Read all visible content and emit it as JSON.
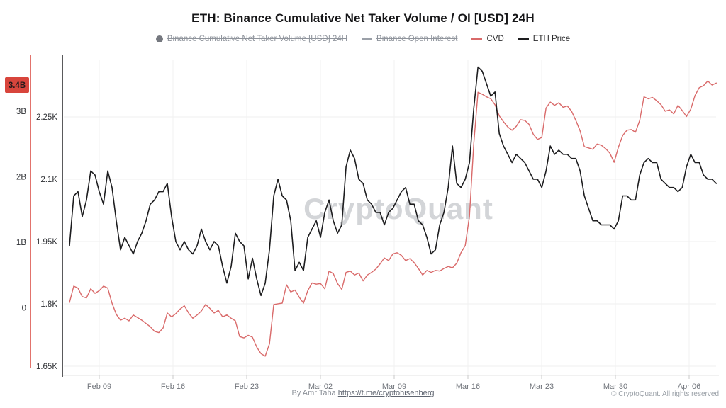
{
  "title": "ETH: Binance Cumulative Net Taker Volume / OI [USD] 24H",
  "watermark": "CryptoQuant",
  "legend": {
    "items": [
      {
        "label": "Binance Cumulative Net Taker Volume [USD] 24H",
        "marker": "dot",
        "color": "#75787f",
        "disabled": true
      },
      {
        "label": "Binance Open Interest",
        "marker": "dash",
        "color": "#9ba0a8",
        "disabled": true
      },
      {
        "label": "CVD",
        "marker": "dash",
        "color": "#d96a6a",
        "disabled": false
      },
      {
        "label": "ETH Price",
        "marker": "dash",
        "color": "#1d1d1f",
        "disabled": false
      }
    ]
  },
  "footer": {
    "attribution_prefix": "By Amr Taha",
    "attribution_link": "https://t.me/cryptohisenberg",
    "copyright": "© CryptoQuant. All rights reserved"
  },
  "chart_data": {
    "type": "line",
    "title": "ETH: Binance Cumulative Net Taker Volume / OI [USD] 24H",
    "grid": "horizontal-and-faint-vertical",
    "legend_position": "top",
    "x_axis": {
      "tick_labels": [
        "Feb 09",
        "Feb 16",
        "Feb 23",
        "Mar 02",
        "Mar 09",
        "Mar 16",
        "Mar 23",
        "Mar 30",
        "Apr 06"
      ],
      "tick_days": [
        0,
        7,
        14,
        21,
        28,
        35,
        42,
        49,
        56
      ]
    },
    "volume_axis": {
      "unit": "B",
      "axis_color": "#d8453c",
      "ticks": [
        {
          "label": "3B",
          "value": 3
        },
        {
          "label": "2B",
          "value": 2
        },
        {
          "label": "1B",
          "value": 1
        },
        {
          "label": "0",
          "value": 0
        }
      ],
      "badge": {
        "label": "3.4B",
        "value": 3.4,
        "bg_color": "#d8453c",
        "text_color": "#26191a"
      }
    },
    "price_axis": {
      "unit": "K",
      "axis_color": "#5a5a5c",
      "ticks": [
        {
          "label": "2.25K",
          "value": 2.25
        },
        {
          "label": "2.1K",
          "value": 2.1
        },
        {
          "label": "1.95K",
          "value": 1.95
        },
        {
          "label": "1.8K",
          "value": 1.8
        },
        {
          "label": "1.65K",
          "value": 1.65
        }
      ]
    },
    "hidden_series": [
      "Binance Cumulative Net Taker Volume [USD] 24H",
      "Binance Open Interest"
    ],
    "series": [
      {
        "name": "CVD",
        "axis": "volume",
        "unit": "B",
        "color": "#d96a6a",
        "start_day": -2.83,
        "step_days": 0.404,
        "values": [
          0.08,
          0.33,
          0.3,
          0.17,
          0.15,
          0.29,
          0.22,
          0.26,
          0.33,
          0.3,
          0.07,
          -0.1,
          -0.19,
          -0.16,
          -0.2,
          -0.11,
          -0.15,
          -0.19,
          -0.24,
          -0.29,
          -0.36,
          -0.38,
          -0.31,
          -0.08,
          -0.14,
          -0.09,
          -0.02,
          0.03,
          -0.08,
          -0.16,
          -0.11,
          -0.05,
          0.05,
          -0.01,
          -0.08,
          -0.04,
          -0.14,
          -0.11,
          -0.16,
          -0.2,
          -0.44,
          -0.46,
          -0.42,
          -0.45,
          -0.6,
          -0.7,
          -0.74,
          -0.55,
          0.05,
          0.06,
          0.07,
          0.35,
          0.24,
          0.27,
          0.16,
          0.07,
          0.26,
          0.38,
          0.36,
          0.37,
          0.29,
          0.56,
          0.52,
          0.37,
          0.28,
          0.54,
          0.56,
          0.5,
          0.53,
          0.41,
          0.5,
          0.54,
          0.59,
          0.67,
          0.76,
          0.72,
          0.82,
          0.84,
          0.8,
          0.72,
          0.75,
          0.69,
          0.6,
          0.5,
          0.57,
          0.54,
          0.57,
          0.56,
          0.6,
          0.63,
          0.61,
          0.68,
          0.84,
          0.95,
          1.4,
          2.5,
          3.29,
          3.26,
          3.22,
          3.19,
          3.1,
          2.93,
          2.84,
          2.76,
          2.71,
          2.77,
          2.87,
          2.86,
          2.8,
          2.65,
          2.57,
          2.6,
          3.05,
          3.14,
          3.09,
          3.13,
          3.06,
          3.08,
          3.0,
          2.86,
          2.7,
          2.46,
          2.44,
          2.42,
          2.5,
          2.48,
          2.43,
          2.36,
          2.22,
          2.45,
          2.63,
          2.71,
          2.72,
          2.68,
          2.86,
          3.22,
          3.19,
          3.21,
          3.16,
          3.1,
          3.0,
          3.02,
          2.96,
          3.09,
          3.01,
          2.92,
          3.03,
          3.24,
          3.36,
          3.39,
          3.46,
          3.4,
          3.43
        ]
      },
      {
        "name": "ETH Price",
        "axis": "price",
        "unit": "K",
        "color": "#1d1d1f",
        "start_day": -2.83,
        "step_days": 0.404,
        "values": [
          1.94,
          2.06,
          2.07,
          2.01,
          2.05,
          2.12,
          2.11,
          2.07,
          2.04,
          2.12,
          2.08,
          2.0,
          1.93,
          1.96,
          1.94,
          1.92,
          1.95,
          1.97,
          2.0,
          2.04,
          2.05,
          2.07,
          2.07,
          2.09,
          2.01,
          1.95,
          1.93,
          1.95,
          1.93,
          1.92,
          1.94,
          1.98,
          1.95,
          1.93,
          1.95,
          1.94,
          1.89,
          1.85,
          1.89,
          1.97,
          1.95,
          1.94,
          1.86,
          1.91,
          1.86,
          1.82,
          1.85,
          1.93,
          2.06,
          2.1,
          2.06,
          2.05,
          2.0,
          1.88,
          1.9,
          1.88,
          1.96,
          1.98,
          2.0,
          1.96,
          2.02,
          2.05,
          2.0,
          1.97,
          1.99,
          2.13,
          2.17,
          2.15,
          2.1,
          2.09,
          2.05,
          2.04,
          2.02,
          2.02,
          1.99,
          2.02,
          2.03,
          2.05,
          2.07,
          2.08,
          2.04,
          2.04,
          2.0,
          1.99,
          1.96,
          1.92,
          1.93,
          1.99,
          2.02,
          2.08,
          2.18,
          2.09,
          2.08,
          2.1,
          2.14,
          2.27,
          2.37,
          2.36,
          2.33,
          2.3,
          2.31,
          2.21,
          2.18,
          2.16,
          2.14,
          2.16,
          2.15,
          2.14,
          2.12,
          2.1,
          2.1,
          2.08,
          2.12,
          2.18,
          2.16,
          2.17,
          2.16,
          2.16,
          2.15,
          2.15,
          2.12,
          2.06,
          2.03,
          2.0,
          2.0,
          1.99,
          1.99,
          1.99,
          1.98,
          2.0,
          2.06,
          2.06,
          2.05,
          2.05,
          2.11,
          2.14,
          2.15,
          2.14,
          2.14,
          2.1,
          2.09,
          2.08,
          2.08,
          2.07,
          2.08,
          2.13,
          2.16,
          2.14,
          2.14,
          2.11,
          2.1,
          2.1,
          2.09
        ]
      }
    ]
  }
}
